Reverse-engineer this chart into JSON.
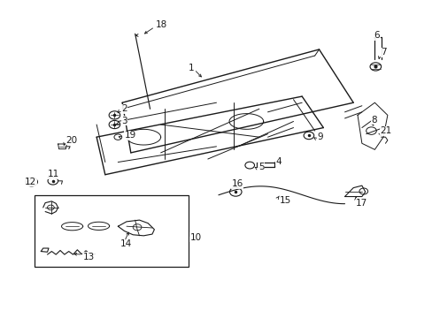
{
  "bg_color": "#ffffff",
  "fig_width": 4.89,
  "fig_height": 3.6,
  "dpi": 100,
  "line_color": "#1a1a1a",
  "hood_outer": {
    "x": [
      0.28,
      0.32,
      0.33,
      0.72,
      0.8,
      0.82,
      0.7,
      0.28
    ],
    "y": [
      0.55,
      0.62,
      0.62,
      0.85,
      0.78,
      0.68,
      0.52,
      0.55
    ]
  },
  "hood_inner_top": {
    "x": [
      0.32,
      0.33,
      0.72,
      0.8
    ],
    "y": [
      0.62,
      0.64,
      0.87,
      0.8
    ]
  },
  "hood_right_edge": {
    "x": [
      0.72,
      0.8,
      0.82
    ],
    "y": [
      0.85,
      0.8,
      0.68
    ]
  },
  "hood_underside": {
    "x": [
      0.28,
      0.3,
      0.68,
      0.76,
      0.74,
      0.6,
      0.32,
      0.28
    ],
    "y": [
      0.55,
      0.58,
      0.75,
      0.69,
      0.61,
      0.48,
      0.45,
      0.55
    ]
  },
  "label_fontsize": 7.5
}
